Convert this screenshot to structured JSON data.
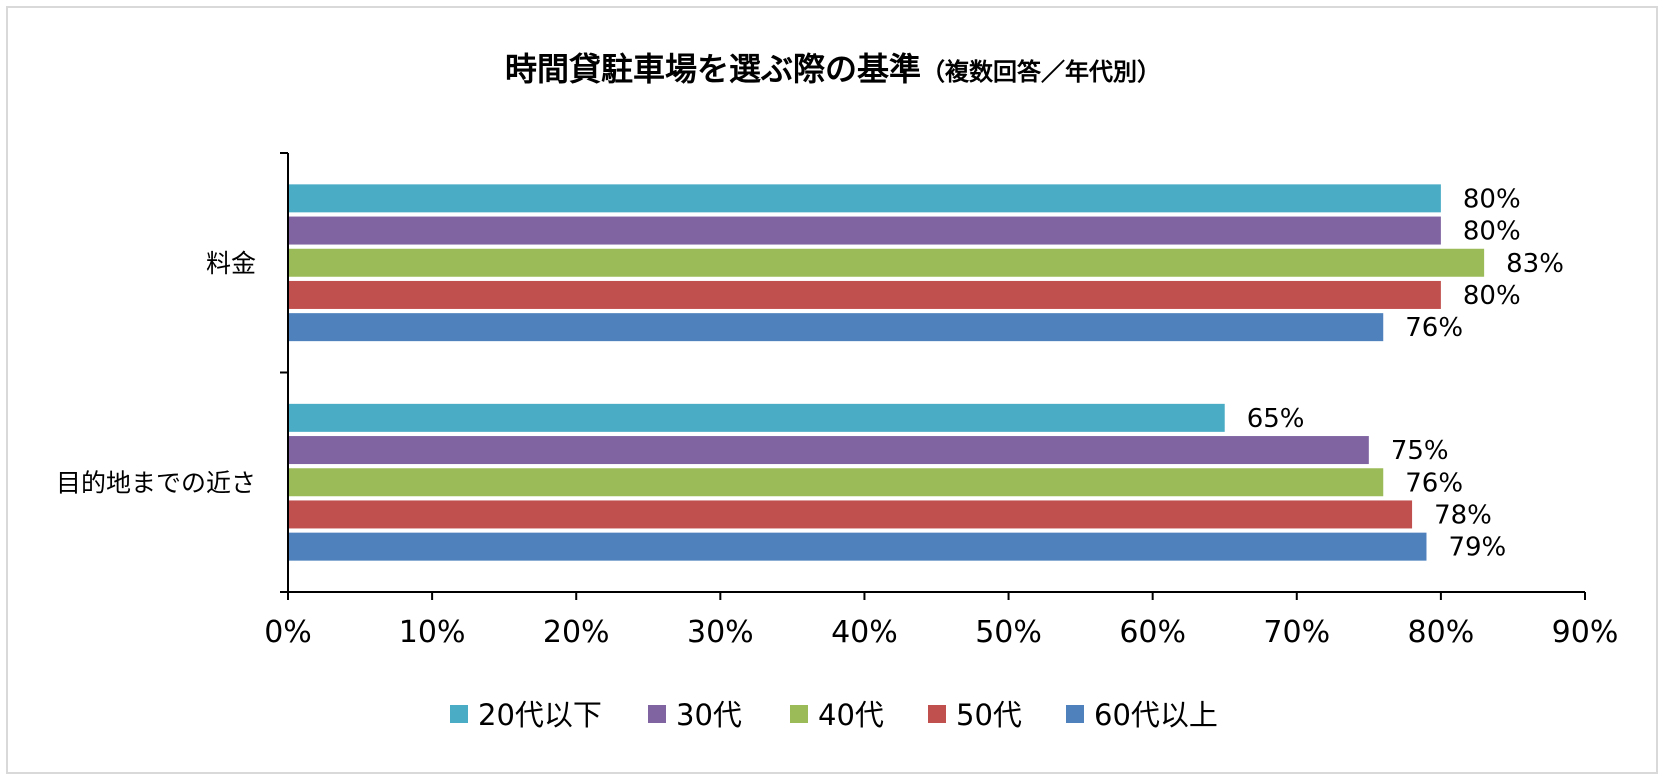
{
  "chart_data": {
    "type": "bar",
    "orientation": "horizontal",
    "title": "時間貸駐車場を選ぶ際の基準",
    "subtitle": "（複数回答／年代別）",
    "categories": [
      "料金",
      "目的地までの近さ"
    ],
    "series": [
      {
        "name": "20代以下",
        "color": "#4BACC6",
        "values": [
          80,
          65
        ],
        "labels": [
          "80%",
          "65%"
        ]
      },
      {
        "name": "30代",
        "color": "#8064A2",
        "values": [
          80,
          75
        ],
        "labels": [
          "80%",
          "75%"
        ]
      },
      {
        "name": "40代",
        "color": "#9BBB59",
        "values": [
          83,
          76
        ],
        "labels": [
          "83%",
          "76%"
        ]
      },
      {
        "name": "50代",
        "color": "#C0504D",
        "values": [
          80,
          78
        ],
        "labels": [
          "80%",
          "78%"
        ]
      },
      {
        "name": "60代以上",
        "color": "#4F81BD",
        "values": [
          76,
          79
        ],
        "labels": [
          "76%",
          "79%"
        ]
      }
    ],
    "xlim": [
      0,
      90
    ],
    "xticks": [
      0,
      10,
      20,
      30,
      40,
      50,
      60,
      70,
      80,
      90
    ],
    "xtick_labels": [
      "0%",
      "10%",
      "20%",
      "30%",
      "40%",
      "50%",
      "60%",
      "70%",
      "80%",
      "90%"
    ],
    "grid": false,
    "legend_position": "bottom"
  }
}
